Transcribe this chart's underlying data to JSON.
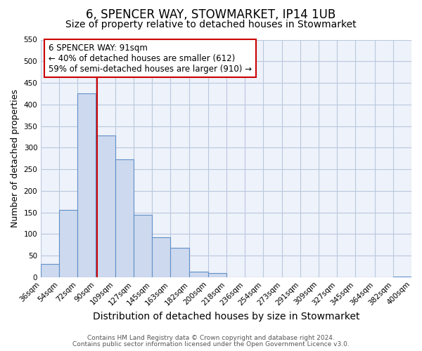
{
  "title": "6, SPENCER WAY, STOWMARKET, IP14 1UB",
  "subtitle": "Size of property relative to detached houses in Stowmarket",
  "xlabel": "Distribution of detached houses by size in Stowmarket",
  "ylabel": "Number of detached properties",
  "bin_edges": [
    36,
    54,
    72,
    90,
    109,
    127,
    145,
    163,
    182,
    200,
    218,
    236,
    254,
    273,
    291,
    309,
    327,
    345,
    364,
    382,
    400
  ],
  "bin_labels": [
    "36sqm",
    "54sqm",
    "72sqm",
    "90sqm",
    "109sqm",
    "127sqm",
    "145sqm",
    "163sqm",
    "182sqm",
    "200sqm",
    "218sqm",
    "236sqm",
    "254sqm",
    "273sqm",
    "291sqm",
    "309sqm",
    "327sqm",
    "345sqm",
    "364sqm",
    "382sqm",
    "400sqm"
  ],
  "counts": [
    30,
    155,
    425,
    328,
    273,
    145,
    92,
    68,
    13,
    10,
    0,
    0,
    0,
    0,
    0,
    0,
    0,
    0,
    0,
    2
  ],
  "bar_facecolor": "#cdd9ee",
  "bar_edgecolor": "#6090c8",
  "property_line_x": 91,
  "property_line_color": "#cc0000",
  "annotation_box_text": "6 SPENCER WAY: 91sqm\n← 40% of detached houses are smaller (612)\n59% of semi-detached houses are larger (910) →",
  "annotation_box_color": "#cc0000",
  "ylim": [
    0,
    550
  ],
  "yticks": [
    0,
    50,
    100,
    150,
    200,
    250,
    300,
    350,
    400,
    450,
    500,
    550
  ],
  "grid_color": "#b8c8de",
  "bg_color": "#eef2fa",
  "footer1": "Contains HM Land Registry data © Crown copyright and database right 2024.",
  "footer2": "Contains public sector information licensed under the Open Government Licence v3.0.",
  "title_fontsize": 12,
  "subtitle_fontsize": 10,
  "xlabel_fontsize": 10,
  "ylabel_fontsize": 9,
  "tick_fontsize": 7.5
}
